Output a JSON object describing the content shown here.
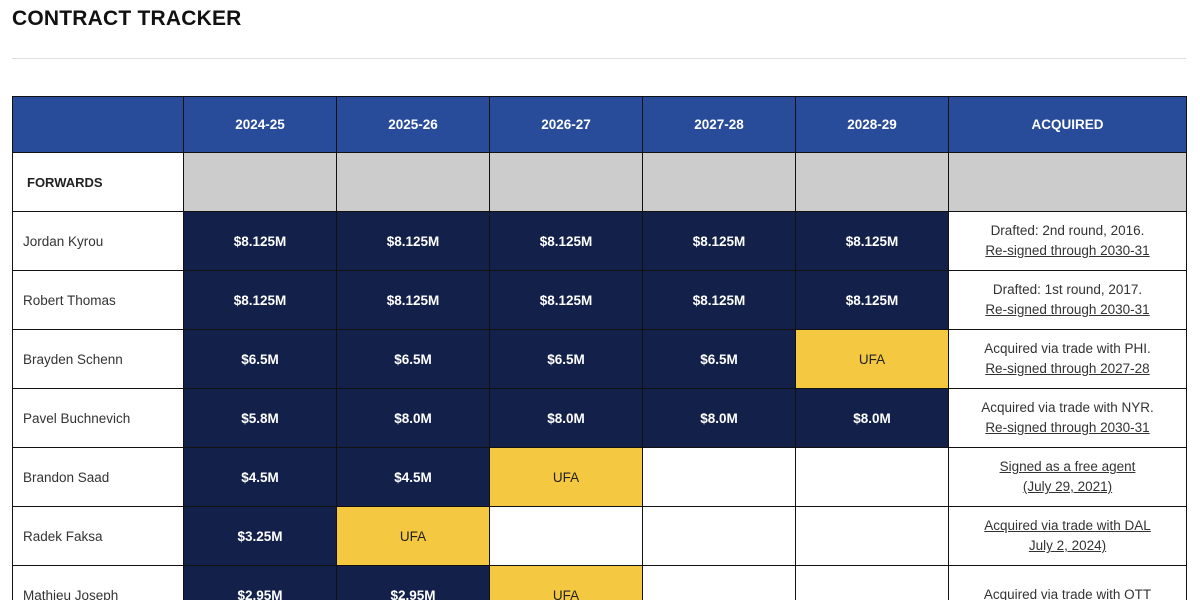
{
  "header": {
    "title": "CONTRACT TRACKER"
  },
  "table": {
    "columns": [
      "2024-25",
      "2025-26",
      "2026-27",
      "2027-28",
      "2028-29",
      "ACQUIRED"
    ],
    "section": "FORWARDS",
    "rows": [
      {
        "name": "Jordan Kyrou",
        "salaries": [
          "$8.125M",
          "$8.125M",
          "$8.125M",
          "$8.125M",
          "$8.125M"
        ],
        "acquired": [
          {
            "text": "Drafted: 2nd round, 2016.",
            "link": false
          },
          {
            "text": "Re-signed through 2030-31",
            "link": true
          }
        ]
      },
      {
        "name": "Robert Thomas",
        "salaries": [
          "$8.125M",
          "$8.125M",
          "$8.125M",
          "$8.125M",
          "$8.125M"
        ],
        "acquired": [
          {
            "text": "Drafted: 1st round, 2017.",
            "link": false
          },
          {
            "text": "Re-signed through 2030-31",
            "link": true
          }
        ]
      },
      {
        "name": "Brayden Schenn",
        "salaries": [
          "$6.5M",
          "$6.5M",
          "$6.5M",
          "$6.5M"
        ],
        "status": "UFA",
        "acquired": [
          {
            "text": "Acquired via trade with PHI.",
            "link": false
          },
          {
            "text": "Re-signed through 2027-28",
            "link": true
          }
        ]
      },
      {
        "name": "Pavel Buchnevich",
        "salaries": [
          "$5.8M",
          "$8.0M",
          "$8.0M",
          "$8.0M",
          "$8.0M"
        ],
        "acquired": [
          {
            "text": "Acquired via trade with NYR.",
            "link": false
          },
          {
            "text": "Re-signed through 2030-31",
            "link": true
          }
        ]
      },
      {
        "name": "Brandon Saad",
        "salaries": [
          "$4.5M",
          "$4.5M"
        ],
        "status": "UFA",
        "acquired": [
          {
            "text": "Signed as a free agent",
            "link": true
          },
          {
            "text": "(July 29, 2021)",
            "link": true
          }
        ]
      },
      {
        "name": "Radek Faksa",
        "salaries": [
          "$3.25M"
        ],
        "status": "UFA",
        "acquired": [
          {
            "text": "Acquired via trade with DAL",
            "link": true
          },
          {
            "text": "July 2, 2024)",
            "link": true
          }
        ]
      },
      {
        "name": "Mathieu Joseph",
        "salaries": [
          "$2.95M",
          "$2.95M"
        ],
        "status": "UFA",
        "acquired": [
          {
            "text": "Acquired via trade with OTT",
            "link": true
          }
        ]
      }
    ]
  }
}
